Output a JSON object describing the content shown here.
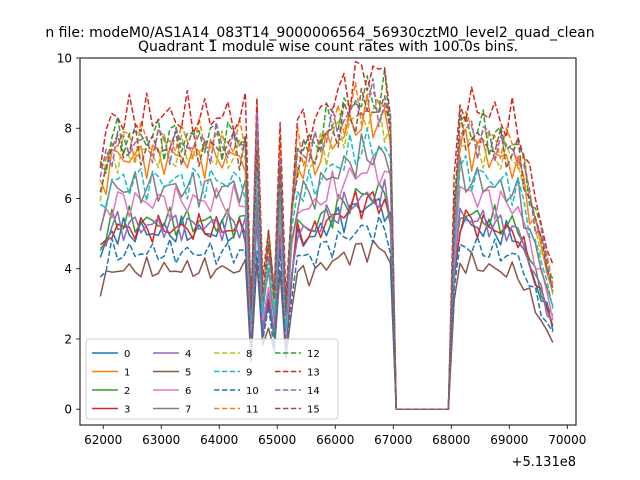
{
  "figure": {
    "suptitle": "n file: modeM0/AS1A14_083T14_9000006564_56930cztM0_level2_quad_clean"
  },
  "chart_data": {
    "type": "line",
    "title": "Quadrant 1 module wise count rates with 100.0s bins.",
    "xlabel": "",
    "ylabel": "",
    "x_offset_label": "+5.131e8",
    "xlim": [
      61600,
      70150
    ],
    "ylim": [
      -0.45,
      10.0
    ],
    "xticks": [
      62000,
      63000,
      64000,
      65000,
      66000,
      67000,
      68000,
      69000,
      70000
    ],
    "xtick_labels": [
      "62000",
      "63000",
      "64000",
      "65000",
      "66000",
      "67000",
      "68000",
      "69000",
      "70000"
    ],
    "yticks": [
      0,
      2,
      4,
      6,
      8,
      10
    ],
    "ytick_labels": [
      "0",
      "2",
      "4",
      "6",
      "8",
      "10"
    ],
    "grid": false,
    "legend": {
      "placement": "lower-left",
      "columns": 4
    },
    "x_start": 61950,
    "bin_width": 100,
    "series": [
      {
        "name": "0",
        "color": "#1f77b4",
        "dashed": false,
        "level": 5.2,
        "values": []
      },
      {
        "name": "1",
        "color": "#ff7f0e",
        "dashed": false,
        "level": 7.4,
        "values": []
      },
      {
        "name": "2",
        "color": "#2ca02c",
        "dashed": false,
        "level": 5.5,
        "values": []
      },
      {
        "name": "3",
        "color": "#d62728",
        "dashed": false,
        "level": 5.3,
        "values": []
      },
      {
        "name": "4",
        "color": "#9467bd",
        "dashed": false,
        "level": 5.4,
        "values": []
      },
      {
        "name": "5",
        "color": "#8c564b",
        "dashed": false,
        "level": 4.1,
        "values": []
      },
      {
        "name": "6",
        "color": "#e377c2",
        "dashed": false,
        "level": 6.1,
        "values": []
      },
      {
        "name": "7",
        "color": "#7f7f7f",
        "dashed": false,
        "level": 6.5,
        "values": []
      },
      {
        "name": "8",
        "color": "#bcbd22",
        "dashed": true,
        "level": 7.5,
        "values": []
      },
      {
        "name": "9",
        "color": "#17becf",
        "dashed": true,
        "level": 6.7,
        "values": []
      },
      {
        "name": "10",
        "color": "#1f77b4",
        "dashed": true,
        "level": 4.6,
        "values": []
      },
      {
        "name": "11",
        "color": "#ff7f0e",
        "dashed": true,
        "level": 7.9,
        "values": []
      },
      {
        "name": "12",
        "color": "#2ca02c",
        "dashed": true,
        "level": 8.0,
        "values": []
      },
      {
        "name": "13",
        "color": "#d62728",
        "dashed": true,
        "level": 8.6,
        "values": []
      },
      {
        "name": "14",
        "color": "#9467bd",
        "dashed": true,
        "level": 7.8,
        "values": []
      },
      {
        "name": "15",
        "color": "#8c564b",
        "dashed": true,
        "level": 7.7,
        "values": []
      }
    ]
  }
}
